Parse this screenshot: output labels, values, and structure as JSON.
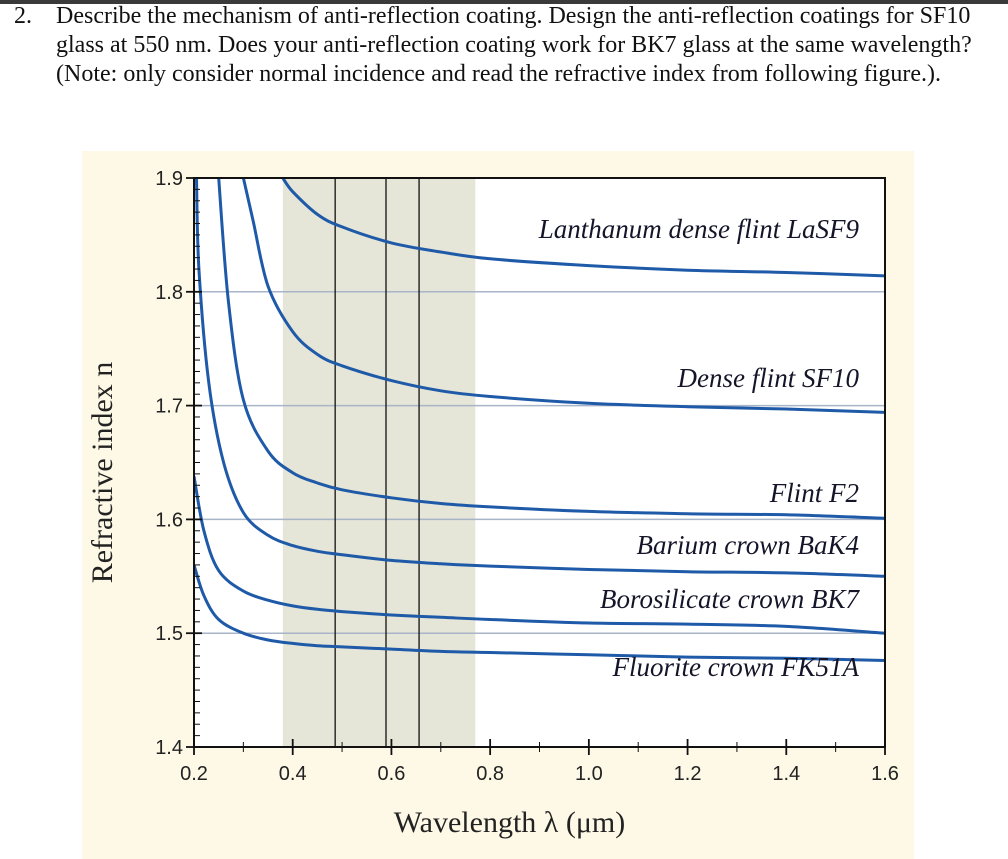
{
  "question": {
    "number": "2.",
    "text": "Describe the mechanism of anti-reflection coating. Design the anti-reflection coatings for SF10 glass at 550 nm. Does your anti-reflection coating work for BK7 glass at the same wavelength? (Note: only consider normal incidence and read the refractive index from following figure.)."
  },
  "chart_data": {
    "type": "line",
    "title": "",
    "xlabel": "Wavelength λ (μm)",
    "ylabel": "Refractive index n",
    "xlim": [
      0.2,
      1.6
    ],
    "ylim": [
      1.4,
      1.9
    ],
    "x_ticks": [
      "0.2",
      "0.4",
      "0.6",
      "0.8",
      "1.0",
      "1.2",
      "1.4",
      "1.6"
    ],
    "y_ticks": [
      "1.4",
      "1.5",
      "1.6",
      "1.7",
      "1.8",
      "1.9"
    ],
    "grid": "horizontal",
    "visible_band": [
      0.38,
      0.77
    ],
    "reference_lines": [
      0.486,
      0.589,
      0.656
    ],
    "colors": {
      "curve": "#1f5aa8",
      "band": "#e5e5d8",
      "grid": "#a8b4c8",
      "background": "#fdf9e6"
    },
    "series": [
      {
        "name": "Lanthanum dense flint LaSF9",
        "points": [
          [
            0.38,
            1.9
          ],
          [
            0.4,
            1.888
          ],
          [
            0.45,
            1.868
          ],
          [
            0.5,
            1.857
          ],
          [
            0.6,
            1.843
          ],
          [
            0.7,
            1.835
          ],
          [
            0.8,
            1.829
          ],
          [
            1.0,
            1.823
          ],
          [
            1.2,
            1.819
          ],
          [
            1.4,
            1.817
          ],
          [
            1.6,
            1.814
          ]
        ]
      },
      {
        "name": "Dense flint SF10",
        "points": [
          [
            0.3,
            1.9
          ],
          [
            0.32,
            1.862
          ],
          [
            0.35,
            1.805
          ],
          [
            0.4,
            1.765
          ],
          [
            0.45,
            1.745
          ],
          [
            0.5,
            1.735
          ],
          [
            0.6,
            1.722
          ],
          [
            0.7,
            1.713
          ],
          [
            0.8,
            1.708
          ],
          [
            1.0,
            1.702
          ],
          [
            1.2,
            1.699
          ],
          [
            1.4,
            1.697
          ],
          [
            1.6,
            1.694
          ]
        ]
      },
      {
        "name": "Flint F2",
        "points": [
          [
            0.25,
            1.9
          ],
          [
            0.27,
            1.79
          ],
          [
            0.3,
            1.705
          ],
          [
            0.35,
            1.66
          ],
          [
            0.4,
            1.641
          ],
          [
            0.45,
            1.632
          ],
          [
            0.5,
            1.626
          ],
          [
            0.6,
            1.619
          ],
          [
            0.7,
            1.614
          ],
          [
            0.8,
            1.611
          ],
          [
            1.0,
            1.607
          ],
          [
            1.2,
            1.605
          ],
          [
            1.4,
            1.604
          ],
          [
            1.6,
            1.601
          ]
        ]
      },
      {
        "name": "Barium crown BaK4",
        "points": [
          [
            0.205,
            1.9
          ],
          [
            0.21,
            1.82
          ],
          [
            0.23,
            1.72
          ],
          [
            0.26,
            1.65
          ],
          [
            0.3,
            1.606
          ],
          [
            0.35,
            1.586
          ],
          [
            0.4,
            1.577
          ],
          [
            0.45,
            1.572
          ],
          [
            0.5,
            1.569
          ],
          [
            0.6,
            1.564
          ],
          [
            0.7,
            1.561
          ],
          [
            0.8,
            1.559
          ],
          [
            1.0,
            1.556
          ],
          [
            1.2,
            1.554
          ],
          [
            1.4,
            1.553
          ],
          [
            1.6,
            1.55
          ]
        ]
      },
      {
        "name": "Borosilicate crown BK7",
        "points": [
          [
            0.2,
            1.638
          ],
          [
            0.22,
            1.59
          ],
          [
            0.25,
            1.555
          ],
          [
            0.3,
            1.537
          ],
          [
            0.35,
            1.529
          ],
          [
            0.4,
            1.524
          ],
          [
            0.45,
            1.521
          ],
          [
            0.5,
            1.519
          ],
          [
            0.6,
            1.516
          ],
          [
            0.7,
            1.514
          ],
          [
            0.8,
            1.512
          ],
          [
            1.0,
            1.509
          ],
          [
            1.2,
            1.508
          ],
          [
            1.4,
            1.506
          ],
          [
            1.6,
            1.5
          ]
        ]
      },
      {
        "name": "Fluorite crown FK51A",
        "points": [
          [
            0.2,
            1.56
          ],
          [
            0.22,
            1.533
          ],
          [
            0.25,
            1.512
          ],
          [
            0.3,
            1.5
          ],
          [
            0.35,
            1.494
          ],
          [
            0.4,
            1.491
          ],
          [
            0.45,
            1.489
          ],
          [
            0.5,
            1.488
          ],
          [
            0.6,
            1.486
          ],
          [
            0.7,
            1.484
          ],
          [
            0.8,
            1.483
          ],
          [
            1.0,
            1.481
          ],
          [
            1.2,
            1.479
          ],
          [
            1.4,
            1.478
          ],
          [
            1.6,
            1.476
          ]
        ]
      }
    ]
  }
}
